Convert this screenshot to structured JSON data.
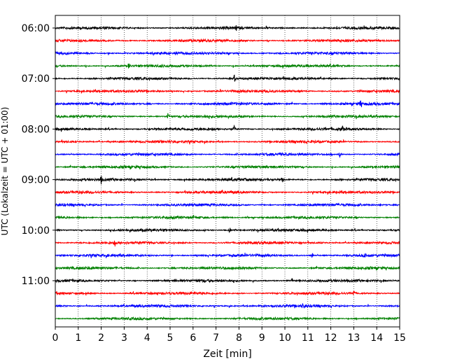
{
  "chart_data": {
    "type": "line",
    "title": "",
    "xlabel": "Zeit  [min]",
    "ylabel": "UTC (Lokalzeit = UTC + 01:00)",
    "xlim": [
      0,
      15
    ],
    "x_ticks": [
      "0",
      "1",
      "2",
      "3",
      "4",
      "5",
      "6",
      "7",
      "8",
      "9",
      "10",
      "11",
      "12",
      "13",
      "14",
      "15"
    ],
    "y_ticks": [
      "06:00",
      "07:00",
      "08:00",
      "09:00",
      "10:00",
      "11:00"
    ],
    "grid": "vertical-dotted",
    "trace_interval_minutes": 15,
    "color_cycle": [
      "#000000",
      "#ff0000",
      "#0000ff",
      "#008000"
    ],
    "series": [
      {
        "start": "06:00",
        "events": [
          7.9
        ]
      },
      {
        "start": "06:15",
        "events": [
          12.4
        ]
      },
      {
        "start": "06:30",
        "events": []
      },
      {
        "start": "06:45",
        "events": [
          3.2
        ]
      },
      {
        "start": "07:00",
        "events": [
          7.8
        ]
      },
      {
        "start": "07:15",
        "events": []
      },
      {
        "start": "07:30",
        "events": [
          13.3
        ]
      },
      {
        "start": "07:45",
        "events": [
          4.9
        ]
      },
      {
        "start": "08:00",
        "events": [
          7.8,
          12.5
        ]
      },
      {
        "start": "08:15",
        "events": []
      },
      {
        "start": "08:30",
        "events": [
          12.4
        ]
      },
      {
        "start": "08:45",
        "events": []
      },
      {
        "start": "09:00",
        "events": [
          2.0,
          9.9
        ]
      },
      {
        "start": "09:15",
        "events": []
      },
      {
        "start": "09:30",
        "events": []
      },
      {
        "start": "09:45",
        "events": []
      },
      {
        "start": "10:00",
        "events": [
          7.6
        ]
      },
      {
        "start": "10:15",
        "events": [
          2.6
        ]
      },
      {
        "start": "10:30",
        "events": [
          11.2,
          13.5
        ]
      },
      {
        "start": "10:45",
        "events": []
      },
      {
        "start": "11:00",
        "events": [
          10.3
        ]
      },
      {
        "start": "11:15",
        "events": [
          13.0
        ]
      },
      {
        "start": "11:30",
        "events": [
          10.8
        ]
      },
      {
        "start": "11:45",
        "events": []
      }
    ]
  }
}
